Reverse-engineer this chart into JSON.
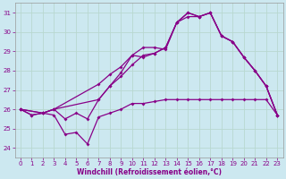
{
  "xlabel": "Windchill (Refroidissement éolien,°C)",
  "background_color": "#cce8f0",
  "grid_color": "#b8d8d0",
  "line_color": "#880088",
  "xlim": [
    -0.5,
    23.5
  ],
  "ylim": [
    23.5,
    31.5
  ],
  "xticks": [
    0,
    1,
    2,
    3,
    4,
    5,
    6,
    7,
    8,
    9,
    10,
    11,
    12,
    13,
    14,
    15,
    16,
    17,
    18,
    19,
    20,
    21,
    22,
    23
  ],
  "yticks": [
    24,
    25,
    26,
    27,
    28,
    29,
    30,
    31
  ],
  "line1_x": [
    0,
    1,
    2,
    3,
    4,
    5,
    6,
    7,
    8,
    9,
    10,
    11,
    12,
    13,
    14,
    15,
    16,
    17,
    18,
    19,
    20,
    21,
    22,
    23
  ],
  "line1_y": [
    26.0,
    25.7,
    25.8,
    25.7,
    24.7,
    24.8,
    24.2,
    25.6,
    25.8,
    26.0,
    26.3,
    26.3,
    26.4,
    26.5,
    26.5,
    26.5,
    26.5,
    26.5,
    26.5,
    26.5,
    26.5,
    26.5,
    26.5,
    25.7
  ],
  "line2_x": [
    0,
    2,
    3,
    7,
    8,
    9,
    10,
    11,
    12,
    13,
    14,
    15,
    16,
    17,
    18,
    19,
    20,
    21,
    22,
    23
  ],
  "line2_y": [
    26.0,
    25.8,
    26.0,
    27.3,
    27.8,
    28.2,
    28.8,
    29.2,
    29.2,
    29.1,
    30.5,
    30.8,
    30.8,
    31.0,
    29.8,
    29.5,
    28.7,
    28.0,
    27.2,
    25.7
  ],
  "line3_x": [
    0,
    2,
    3,
    7,
    8,
    9,
    10,
    11,
    12,
    13,
    14,
    15,
    16,
    17,
    18,
    19,
    20,
    21,
    22,
    23
  ],
  "line3_y": [
    26.0,
    25.8,
    26.0,
    26.5,
    27.2,
    27.7,
    28.3,
    28.8,
    28.9,
    29.2,
    30.5,
    31.0,
    30.8,
    31.0,
    29.8,
    29.5,
    28.7,
    28.0,
    27.2,
    25.7
  ],
  "line4_x": [
    0,
    1,
    2,
    3,
    4,
    5,
    6,
    7,
    8,
    9,
    10,
    11,
    12,
    13,
    14,
    15,
    16,
    17,
    18,
    19,
    20,
    21,
    22,
    23
  ],
  "line4_y": [
    26.0,
    25.7,
    25.8,
    26.0,
    25.5,
    25.8,
    25.5,
    26.5,
    27.2,
    27.9,
    28.8,
    28.7,
    28.9,
    29.2,
    30.5,
    31.0,
    30.8,
    31.0,
    29.8,
    29.5,
    28.7,
    28.0,
    27.2,
    25.7
  ]
}
